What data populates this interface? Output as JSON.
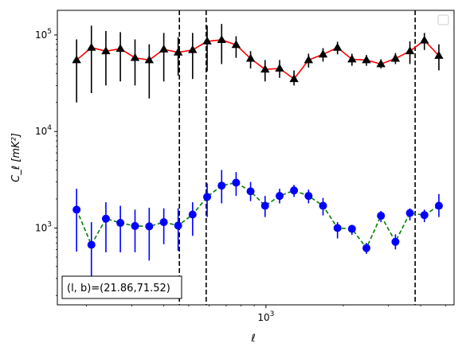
{
  "chart_data": {
    "type": "line",
    "xlabel": "ℓ",
    "ylabel": "C_ℓ [mK²]",
    "xscale": "log",
    "yscale": "log",
    "xlim": [
      154,
      5400
    ],
    "ylim": [
      160,
      180000
    ],
    "grid": false,
    "legend": "upper right (empty)",
    "x_tick_labels": [
      {
        "value": 1000,
        "base": "10",
        "exp": "3"
      }
    ],
    "y_tick_labels": [
      {
        "value": 1000,
        "base": "10",
        "exp": "3"
      },
      {
        "value": 10000,
        "base": "10",
        "exp": "4"
      },
      {
        "value": 100000,
        "base": "10",
        "exp": "5"
      }
    ],
    "annotation": "(l, b)=(21.86,71.52)",
    "vlines": [
      460,
      585,
      3810
    ],
    "colors": {
      "upper_line": "#ff0000",
      "upper_marker": "#000000",
      "lower_line": "#008000",
      "lower_marker": "#0000ff"
    },
    "series": [
      {
        "marker": "triangle",
        "linestyle": "solid",
        "x": [
          183,
          209,
          238,
          271,
          309,
          351,
          400,
          455,
          518,
          590,
          672,
          765,
          871,
          992,
          1130,
          1286,
          1465,
          1668,
          1899,
          2162,
          2462,
          2804,
          3193,
          3635,
          4139,
          4714
        ],
        "y": [
          55000,
          74000,
          68000,
          72000,
          58000,
          55000,
          71000,
          66000,
          70000,
          86000,
          89000,
          79000,
          57000,
          44000,
          45000,
          35000,
          55000,
          63000,
          74000,
          56000,
          55000,
          50000,
          57000,
          68000,
          88000,
          61000
        ],
        "err": [
          [
            20000,
            90000
          ],
          [
            25000,
            125000
          ],
          [
            30000,
            110000
          ],
          [
            33000,
            107000
          ],
          [
            30000,
            90000
          ],
          [
            22000,
            80000
          ],
          [
            33000,
            105000
          ],
          [
            38000,
            95000
          ],
          [
            35000,
            105000
          ],
          [
            42000,
            125000
          ],
          [
            50000,
            130000
          ],
          [
            58000,
            97000
          ],
          [
            45000,
            68000
          ],
          [
            33000,
            55000
          ],
          [
            36000,
            55000
          ],
          [
            30000,
            43000
          ],
          [
            46000,
            64000
          ],
          [
            53000,
            73000
          ],
          [
            63000,
            85000
          ],
          [
            48000,
            64000
          ],
          [
            48000,
            62000
          ],
          [
            45000,
            56000
          ],
          [
            50000,
            65000
          ],
          [
            50000,
            86000
          ],
          [
            70000,
            105000
          ],
          [
            43000,
            80000
          ]
        ]
      },
      {
        "marker": "circle",
        "linestyle": "dashed",
        "x": [
          183,
          209,
          238,
          271,
          309,
          351,
          400,
          455,
          518,
          590,
          672,
          765,
          871,
          992,
          1130,
          1286,
          1465,
          1668,
          1899,
          2162,
          2462,
          2804,
          3193,
          3635,
          4139,
          4714
        ],
        "y": [
          1550,
          670,
          1250,
          1130,
          1050,
          1040,
          1150,
          1060,
          1380,
          2100,
          2750,
          2950,
          2400,
          1700,
          2150,
          2450,
          2150,
          1700,
          1000,
          980,
          620,
          1340,
          720,
          1430,
          1360,
          1700
        ],
        "err": [
          [
            570,
            2550
          ],
          [
            250,
            1150
          ],
          [
            560,
            1850
          ],
          [
            560,
            1700
          ],
          [
            560,
            1550
          ],
          [
            460,
            1620
          ],
          [
            680,
            1600
          ],
          [
            580,
            1600
          ],
          [
            830,
            1850
          ],
          [
            1300,
            2900
          ],
          [
            1800,
            4000
          ],
          [
            2150,
            3800
          ],
          [
            1900,
            3000
          ],
          [
            1300,
            2150
          ],
          [
            1800,
            2550
          ],
          [
            2100,
            2800
          ],
          [
            1800,
            2500
          ],
          [
            1350,
            2050
          ],
          [
            780,
            1150
          ],
          [
            850,
            1080
          ],
          [
            540,
            700
          ],
          [
            1150,
            1500
          ],
          [
            600,
            860
          ],
          [
            1200,
            1600
          ],
          [
            1150,
            1550
          ],
          [
            1300,
            2250
          ]
        ]
      }
    ]
  }
}
